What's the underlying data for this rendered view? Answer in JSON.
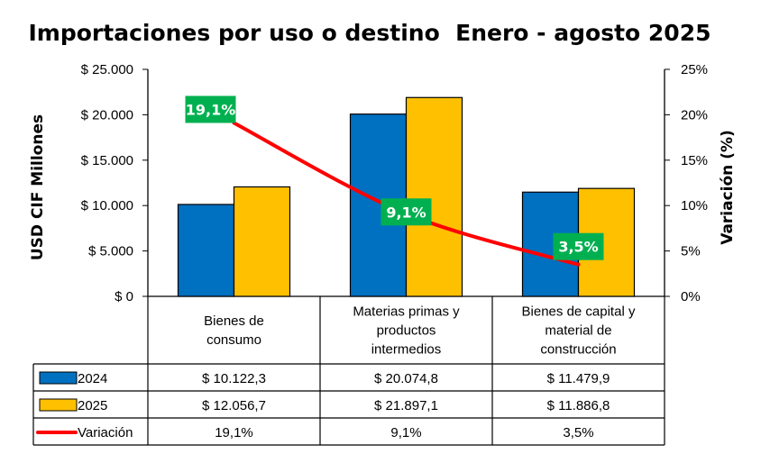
{
  "chart_data": {
    "type": "bar",
    "title": "Importaciones por uso o destino  Enero - agosto 2025",
    "ylabel": "USD CIF Millones",
    "y2label": "Variación (%)",
    "ylim": [
      0,
      25000
    ],
    "y2lim": [
      0,
      25
    ],
    "yticks": [
      "$ 0",
      "$ 5.000",
      "$ 10.000",
      "$ 15.000",
      "$ 20.000",
      "$ 25.000"
    ],
    "y2ticks": [
      "0%",
      "5%",
      "10%",
      "15%",
      "20%",
      "25%"
    ],
    "categories": [
      [
        "Bienes de",
        "consumo"
      ],
      [
        "Materias primas y",
        "productos",
        "intermedios"
      ],
      [
        "Bienes de capital y",
        "material de",
        "construcción"
      ]
    ],
    "series": [
      {
        "name": "2024",
        "type": "bar",
        "color": "#0070C0",
        "values": [
          10122.3,
          20074.8,
          11479.9
        ],
        "labels": [
          "$ 10.122,3",
          "$ 20.074,8",
          "$ 11.479,9"
        ]
      },
      {
        "name": "2025",
        "type": "bar",
        "color": "#FFC000",
        "values": [
          12056.7,
          21897.1,
          11886.8
        ],
        "labels": [
          "$ 12.056,7",
          "$ 21.897,1",
          "$ 11.886,8"
        ]
      },
      {
        "name": "Variación",
        "type": "line",
        "axis": "secondary",
        "color": "#FF0000",
        "values": [
          19.1,
          9.1,
          3.5
        ],
        "labels": [
          "19,1%",
          "9,1%",
          "3,5%"
        ]
      }
    ],
    "data_label_color": "#00B050",
    "grid": false,
    "legend": "data-table"
  }
}
